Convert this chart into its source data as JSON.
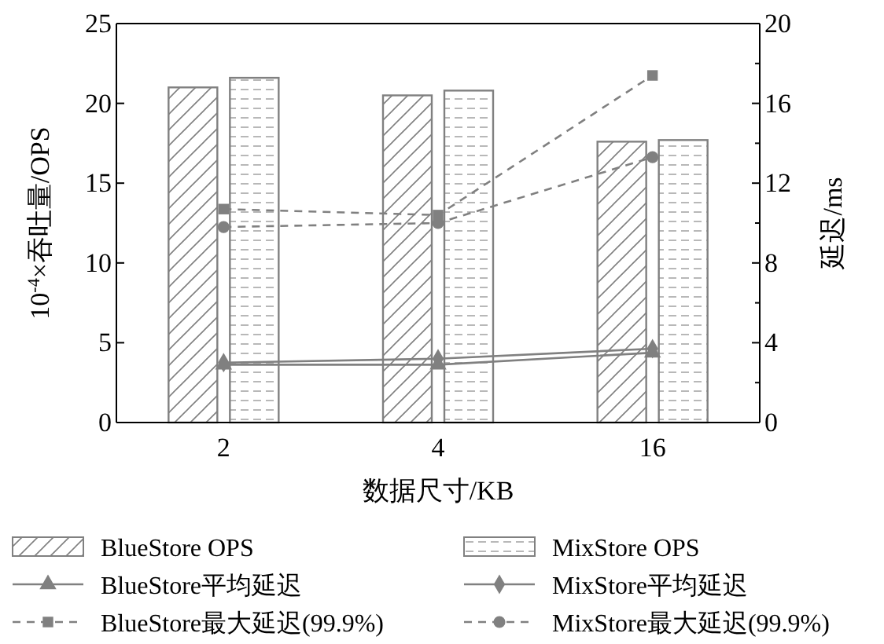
{
  "chart_data": {
    "type": "bar",
    "categories": [
      "2",
      "4",
      "16"
    ],
    "xlabel": "数据尺寸/KB",
    "ylabel": "10$^{-4}$×吞吐量/OPS",
    "y2label": "延迟/ms",
    "ylim": [
      0,
      25
    ],
    "yticks": [
      0,
      5,
      10,
      15,
      20,
      25
    ],
    "y2lim": [
      0,
      20
    ],
    "y2ticks": [
      0,
      4,
      8,
      12,
      16,
      20
    ],
    "legend": "bottom",
    "grid": false,
    "series": [
      {
        "name": "BlueStore OPS",
        "color": "#808080",
        "values": [
          21.0,
          20.5,
          17.6
        ]
      },
      {
        "name": "MixStore OPS",
        "color": "#808080",
        "values": [
          21.6,
          20.8,
          17.7
        ]
      },
      {
        "name": "BlueStore平均延迟",
        "type": "line",
        "axis": "y2",
        "color": "#808080",
        "marker": "triangle",
        "line_style": "solid",
        "values": [
          2.9,
          2.9,
          3.5
        ]
      },
      {
        "name": "MixStore平均延迟",
        "type": "line",
        "axis": "y2",
        "color": "#808080",
        "marker": "diamond",
        "line_style": "solid",
        "values": [
          3.0,
          3.2,
          3.7
        ]
      },
      {
        "name": "BlueStore最大延迟(99.9%)",
        "type": "line",
        "axis": "y2",
        "color": "#808080",
        "marker": "square",
        "line_style": "dashed",
        "values": [
          10.7,
          10.4,
          17.4
        ]
      },
      {
        "name": "MixStore最大延迟(99.9%)",
        "type": "line",
        "axis": "y2",
        "color": "#808080",
        "marker": "circle",
        "line_style": "dashed",
        "values": [
          9.8,
          10.0,
          13.3
        ]
      }
    ]
  }
}
